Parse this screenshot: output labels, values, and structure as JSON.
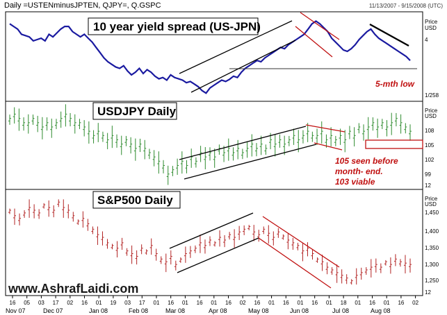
{
  "header": {
    "symbols": "Daily =USTENminusJPTEN, QJPY=, Q.GSPC",
    "range": "11/13/2007 - 9/15/2008 (UTC)"
  },
  "watermark": "www.AshrafLaidi.com",
  "x_axis": {
    "day_labels": [
      "16",
      "05",
      "03",
      "17",
      "02",
      "16",
      "01",
      "19",
      "03",
      "17",
      "01",
      "16",
      "01",
      "16",
      "01",
      "16",
      "02",
      "16",
      "01",
      "16",
      "01",
      "16",
      "01",
      "18",
      "01",
      "16",
      "01",
      "16",
      "02"
    ],
    "month_labels": [
      "Nov 07",
      "Dec 07",
      "Jan 08",
      "Feb 08",
      "Mar 08",
      "Apr 08",
      "May 08",
      "Jun 08",
      "Jul 08",
      "Aug 08"
    ]
  },
  "colors": {
    "spread": "#1a1aa0",
    "usdjpy": "#2e8b2e",
    "sp500": "#b22222",
    "trend_black": "#000000",
    "trend_red": "#c01010",
    "annotation": "#c01010"
  },
  "chart_data": [
    {
      "type": "line",
      "title": "10 year yield spread (US-JPN)",
      "series": [
        {
          "values": [
            5.1,
            5.0,
            4.9,
            4.7,
            4.65,
            4.6,
            4.45,
            4.5,
            4.55,
            4.45,
            4.7,
            4.6,
            4.75,
            4.9,
            5.0,
            5.0,
            4.8,
            4.7,
            4.6,
            4.7,
            4.55,
            4.4,
            4.2,
            4.0,
            3.8,
            3.65,
            3.55,
            3.45,
            3.4,
            3.5,
            3.3,
            3.15,
            3.25,
            3.4,
            3.2,
            3.35,
            3.25,
            3.1,
            3.0,
            3.05,
            2.95,
            3.15,
            3.05,
            3.0,
            2.95,
            2.85,
            2.9,
            2.8,
            2.7,
            2.55,
            2.45,
            2.65,
            2.75,
            2.85,
            2.95,
            2.9,
            2.98,
            3.1,
            3.05,
            3.25,
            3.4,
            3.5,
            3.6,
            3.7,
            3.65,
            3.8,
            3.9,
            4.0,
            4.1,
            4.2,
            4.15,
            4.3,
            4.4,
            4.5,
            4.6,
            4.7,
            4.9,
            5.1,
            5.2,
            5.1,
            4.95,
            4.8,
            4.55,
            4.4,
            4.25,
            4.1,
            4.05,
            4.15,
            4.3,
            4.5,
            4.65,
            4.8,
            4.9,
            4.7,
            4.55,
            4.45,
            4.35,
            4.25,
            4.15,
            4.05,
            3.95,
            3.85,
            3.7
          ]
        }
      ],
      "annotations": [
        "5-mth low"
      ],
      "y_tick_labels": [
        "Price",
        "USD",
        "4",
        "1/258"
      ],
      "trendlines": [
        {
          "color": "black",
          "channel": "ascending"
        },
        {
          "color": "red",
          "channel": "descending"
        },
        {
          "color": "black",
          "channel": "descending"
        }
      ]
    },
    {
      "type": "ohlc",
      "title": "USDJPY Daily",
      "series": [
        {
          "values": [
            111,
            112,
            111,
            110,
            110,
            111,
            110,
            109,
            110,
            109,
            110,
            111,
            112,
            111,
            110,
            110,
            109,
            108,
            107,
            108,
            107,
            106,
            107,
            106,
            105,
            106,
            105,
            104,
            105,
            104,
            103,
            102,
            101,
            100,
            98,
            99,
            100,
            101,
            100,
            102,
            101,
            103,
            102,
            103,
            102,
            104,
            103,
            104,
            103,
            104,
            103,
            104,
            105,
            104,
            105,
            104,
            106,
            105,
            106,
            105,
            106,
            107,
            106,
            107,
            108,
            107,
            107,
            108,
            106,
            107,
            106,
            107,
            106,
            108,
            107,
            109,
            108,
            109,
            110,
            109,
            110,
            109,
            110,
            111,
            110,
            109,
            108
          ],
          "levels_shown": [
            105
          ]
        }
      ],
      "annotations": [
        "105 seen before",
        "month- end.",
        "103 viable"
      ],
      "y_tick_labels": [
        "Price",
        "USD",
        "108",
        "105",
        "102",
        "99",
        "12"
      ]
    },
    {
      "type": "ohlc",
      "title": "S&P500 Daily",
      "series": [
        {
          "values": [
            1480,
            1460,
            1450,
            1470,
            1490,
            1480,
            1470,
            1500,
            1490,
            1480,
            1510,
            1490,
            1480,
            1460,
            1440,
            1450,
            1430,
            1410,
            1390,
            1380,
            1360,
            1350,
            1340,
            1360,
            1330,
            1320,
            1310,
            1340,
            1330,
            1350,
            1320,
            1300,
            1290,
            1310,
            1280,
            1300,
            1320,
            1330,
            1340,
            1360,
            1350,
            1370,
            1360,
            1380,
            1370,
            1390,
            1380,
            1400,
            1410,
            1420,
            1400,
            1390,
            1410,
            1395,
            1380,
            1400,
            1385,
            1370,
            1360,
            1350,
            1330,
            1340,
            1320,
            1300,
            1290,
            1270,
            1260,
            1250,
            1240,
            1230,
            1220,
            1240,
            1250,
            1260,
            1270,
            1280,
            1270,
            1290,
            1280,
            1300,
            1290,
            1285,
            1280
          ]
        }
      ],
      "y_tick_labels": [
        "Price",
        "USD",
        "1,450",
        "1,400",
        "1,350",
        "1,300",
        "1,250",
        "12"
      ]
    }
  ]
}
